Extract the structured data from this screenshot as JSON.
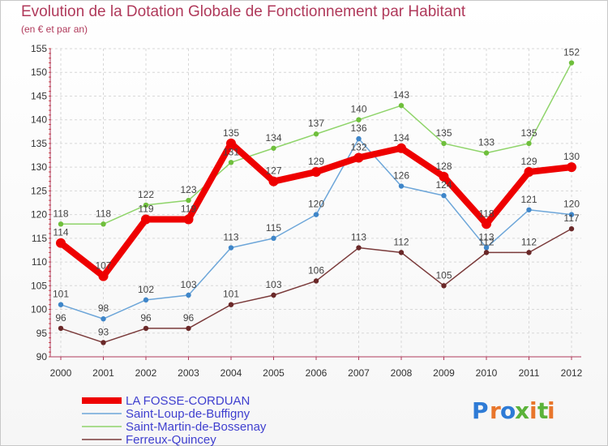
{
  "header": {
    "title": "Evolution de la Dotation Globale de Fonctionnement par Habitant",
    "subtitle": "(en € et par an)"
  },
  "logo": {
    "text": "Proxiti",
    "letters": [
      "P",
      "r",
      "o",
      "x",
      "i",
      "t",
      "i"
    ],
    "colors": [
      "#2e7bd6",
      "#e8762c",
      "#2e7bd6",
      "#5bb33a",
      "#e8762c",
      "#5bb33a",
      "#e8762c"
    ]
  },
  "chart_data": {
    "type": "line",
    "title": "Evolution de la Dotation Globale de Fonctionnement par Habitant",
    "subtitle": "(en € et par an)",
    "xlabel": "",
    "ylabel": "",
    "ylim": [
      90,
      155
    ],
    "y_ticks": [
      90,
      95,
      100,
      105,
      110,
      115,
      120,
      125,
      130,
      135,
      140,
      145,
      150,
      155
    ],
    "categories": [
      "2000",
      "2001",
      "2002",
      "2003",
      "2004",
      "2005",
      "2006",
      "2007",
      "2008",
      "2009",
      "2010",
      "2011",
      "2012"
    ],
    "legend_position": "bottom-left",
    "series": [
      {
        "name": "Saint-Martin-de-Bossenay",
        "color": "#8fd46a",
        "marker": "#6fbf3c",
        "width": 1.5,
        "values": [
          118,
          118,
          122,
          123,
          131,
          134,
          137,
          140,
          143,
          135,
          133,
          135,
          152
        ]
      },
      {
        "name": "Saint-Loup-de-Buffigny",
        "color": "#6da6d9",
        "marker": "#3f86c9",
        "width": 1.5,
        "values": [
          101,
          98,
          102,
          103,
          113,
          115,
          120,
          136,
          126,
          124,
          113,
          121,
          120
        ]
      },
      {
        "name": "Ferreux-Quincey",
        "color": "#7a3a3a",
        "marker": "#6a2828",
        "width": 1.5,
        "values": [
          96,
          93,
          96,
          96,
          101,
          103,
          106,
          113,
          112,
          105,
          112,
          112,
          117
        ]
      },
      {
        "name": "LA FOSSE-CORDUAN",
        "color": "#ee0000",
        "marker": "#ee0000",
        "width": 8,
        "values": [
          114,
          107,
          119,
          119,
          135,
          127,
          129,
          132,
          134,
          128,
          118,
          129,
          130
        ]
      }
    ],
    "legend_order": [
      "LA FOSSE-CORDUAN",
      "Saint-Loup-de-Buffigny",
      "Saint-Martin-de-Bossenay",
      "Ferreux-Quincey"
    ]
  }
}
